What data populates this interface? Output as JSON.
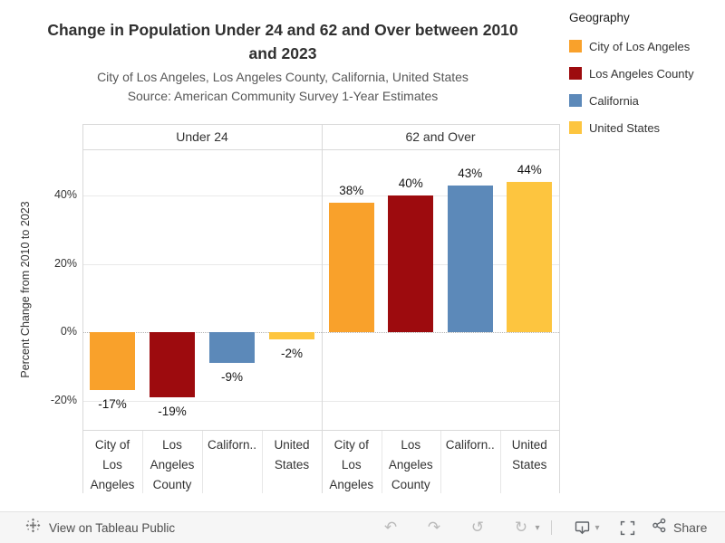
{
  "chart_data": {
    "type": "bar",
    "title": "Change in Population Under 24 and 62 and Over between 2010 and 2023",
    "title_lines": [
      "Change in Population Under 24 and 62 and Over between 2010",
      "and 2023"
    ],
    "subtitle": "City of Los Angeles, Los Angeles County, California, United States",
    "source": "Source: American Community Survey 1-Year Estimates",
    "ylabel": "Percent Change from 2010 to 2023",
    "ylim": [
      -28,
      53
    ],
    "grid": true,
    "yticks": [
      {
        "value": 40,
        "label": "40%"
      },
      {
        "value": 20,
        "label": "20%"
      },
      {
        "value": 0,
        "label": "0%"
      },
      {
        "value": -20,
        "label": "-20%"
      }
    ],
    "legend": {
      "title": "Geography",
      "position": "top-right",
      "items": [
        {
          "label": "City of Los Angeles",
          "color": "#F9A12B"
        },
        {
          "label": "Los Angeles County",
          "color": "#9D0B0E"
        },
        {
          "label": "California",
          "color": "#5C89B9"
        },
        {
          "label": "United States",
          "color": "#FDC53F"
        }
      ]
    },
    "panels": [
      {
        "label": "Under 24",
        "bars": [
          {
            "geography": "City of Los Angeles",
            "category_lines": [
              "City of",
              "Los",
              "Angeles"
            ],
            "value": -17,
            "value_label": "-17%"
          },
          {
            "geography": "Los Angeles County",
            "category_lines": [
              "Los",
              "Angeles",
              "County"
            ],
            "value": -19,
            "value_label": "-19%"
          },
          {
            "geography": "California",
            "category_lines": [
              "Californ.."
            ],
            "value": -9,
            "value_label": "-9%"
          },
          {
            "geography": "United States",
            "category_lines": [
              "United",
              "States"
            ],
            "value": -2,
            "value_label": "-2%"
          }
        ]
      },
      {
        "label": "62 and Over",
        "bars": [
          {
            "geography": "City of Los Angeles",
            "category_lines": [
              "City of",
              "Los",
              "Angeles"
            ],
            "value": 38,
            "value_label": "38%"
          },
          {
            "geography": "Los Angeles County",
            "category_lines": [
              "Los",
              "Angeles",
              "County"
            ],
            "value": 40,
            "value_label": "40%"
          },
          {
            "geography": "California",
            "category_lines": [
              "Californ.."
            ],
            "value": 43,
            "value_label": "43%"
          },
          {
            "geography": "United States",
            "category_lines": [
              "United",
              "States"
            ],
            "value": 44,
            "value_label": "44%"
          }
        ]
      }
    ]
  },
  "toolbar": {
    "view_on_label": "View on Tableau Public",
    "share_label": "Share",
    "glyphs": {
      "undo": "↶",
      "redo": "↷",
      "reset": "↺",
      "refresh": "↻",
      "caret_down": "▾"
    }
  }
}
